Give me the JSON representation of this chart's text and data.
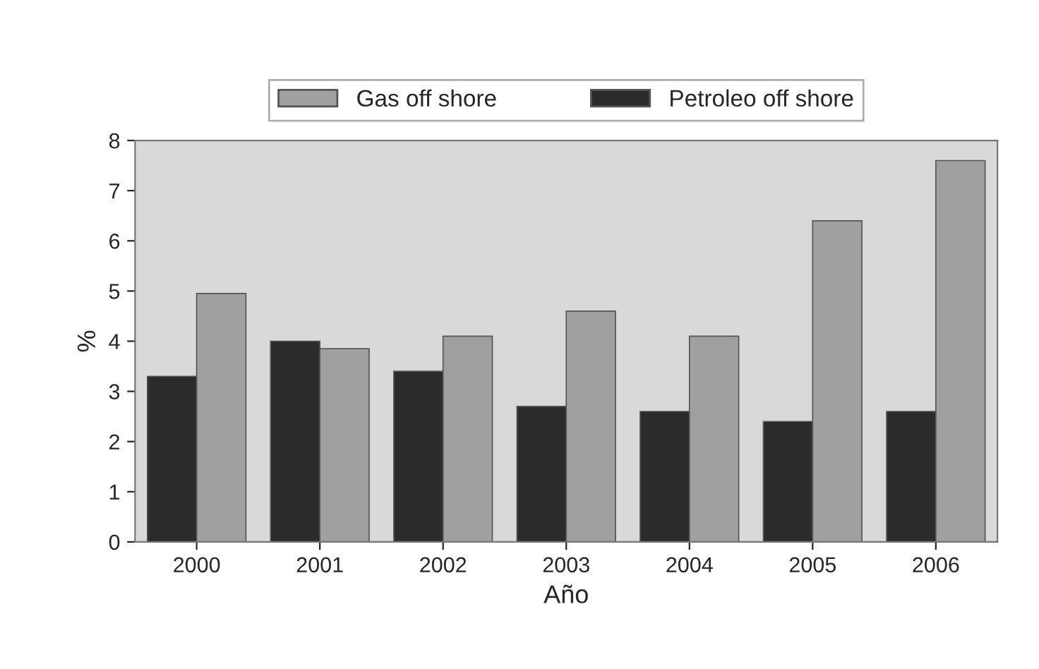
{
  "chart_data": {
    "type": "bar",
    "xlabel": "Año",
    "ylabel": "%",
    "categories": [
      "2000",
      "2001",
      "2002",
      "2003",
      "2004",
      "2005",
      "2006"
    ],
    "series": [
      {
        "name": "Petroleo off shore",
        "color": "#2b2b2b",
        "values": [
          3.3,
          4.0,
          3.4,
          2.7,
          2.6,
          2.4,
          2.6
        ]
      },
      {
        "name": "Gas off shore",
        "color": "#a0a0a0",
        "values": [
          4.95,
          3.85,
          4.1,
          4.6,
          4.1,
          6.4,
          7.6
        ]
      }
    ],
    "ylim": [
      0,
      8
    ],
    "yticks": [
      0,
      1,
      2,
      3,
      4,
      5,
      6,
      7,
      8
    ],
    "grid": false,
    "legend": "top"
  }
}
